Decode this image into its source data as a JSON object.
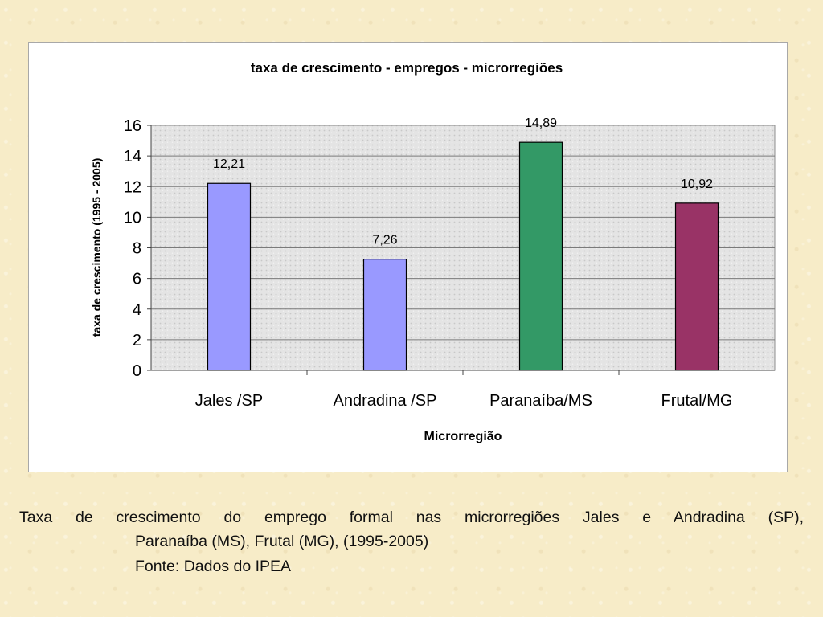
{
  "chart_data": {
    "type": "bar",
    "title": "taxa de crescimento - empregos - microrregiões",
    "xlabel": "Microrregião",
    "ylabel": "taxa de crescimento (1995 - 2005)",
    "categories": [
      "Jales /SP",
      "Andradina /SP",
      "Paranaíba/MS",
      "Frutal/MG"
    ],
    "values": [
      12.21,
      7.26,
      14.89,
      10.92
    ],
    "value_labels": [
      "12,21",
      "7,26",
      "14,89",
      "10,92"
    ],
    "bar_colors": [
      "#9999ff",
      "#9999ff",
      "#339966",
      "#993366"
    ],
    "ylim": [
      0,
      16
    ],
    "yticks": [
      0,
      2,
      4,
      6,
      8,
      10,
      12,
      14,
      16
    ],
    "grid": true,
    "legend": "none"
  },
  "caption": {
    "line1": "Taxa de crescimento do emprego formal nas microrregiões Jales e Andradina (SP),",
    "line2": "Paranaíba (MS), Frutal (MG), (1995-2005)",
    "line3": "Fonte: Dados do IPEA"
  }
}
